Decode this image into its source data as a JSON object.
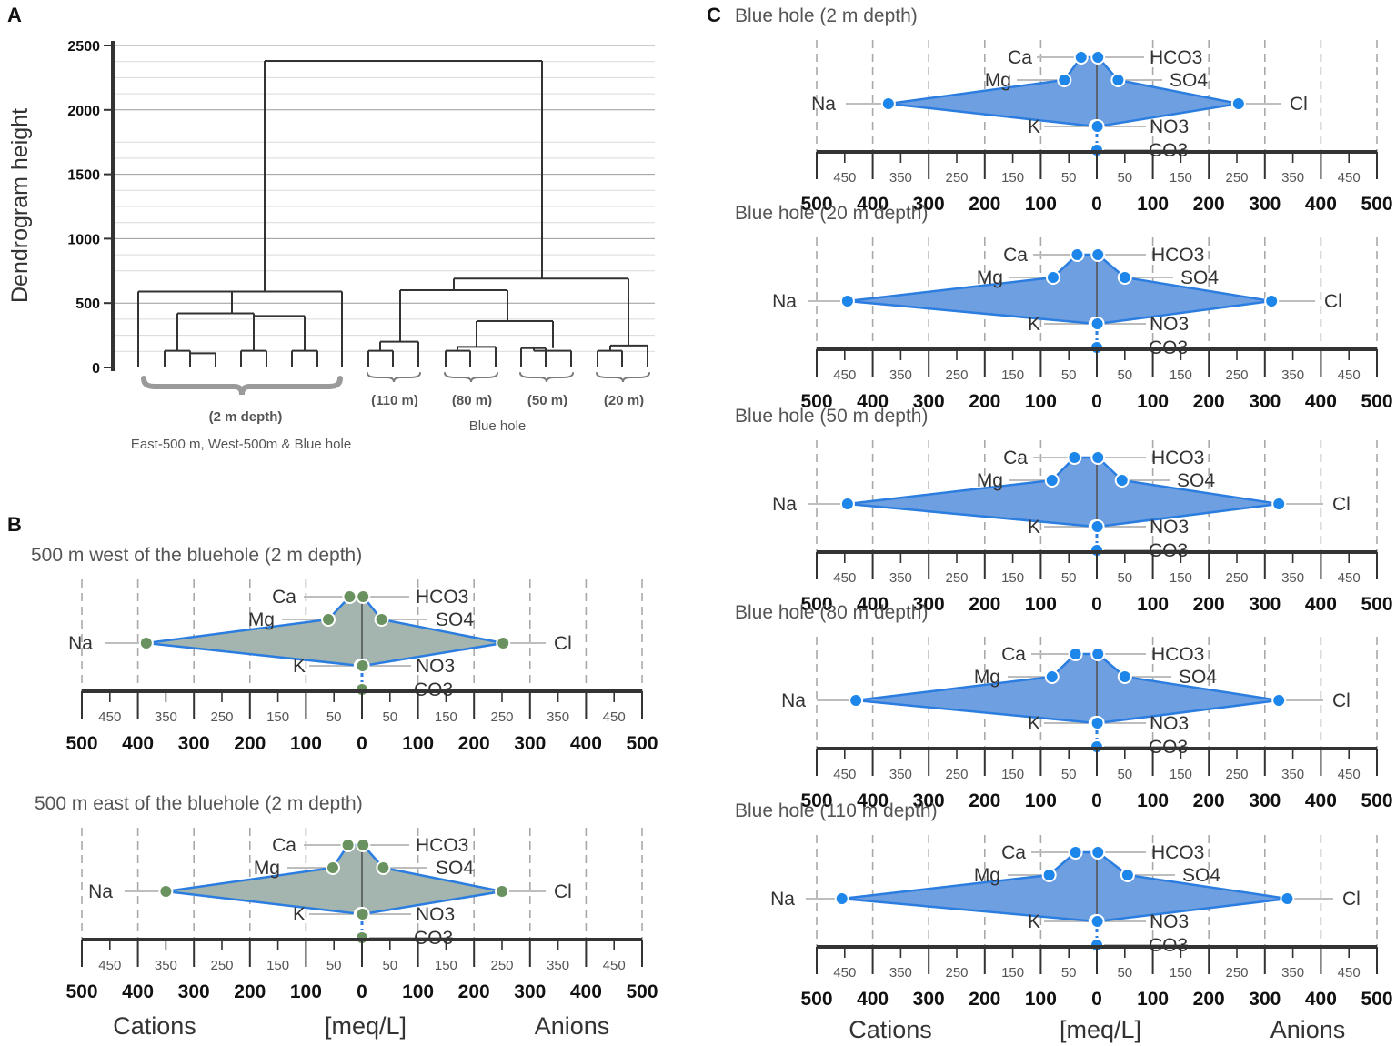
{
  "panel_labels": {
    "a": "A",
    "b": "B",
    "c": "C"
  },
  "chart_data": [
    {
      "type": "dendrogram",
      "panel": "A",
      "ylabel": "Dendrogram height",
      "ylim": [
        0,
        2500
      ],
      "yticks": [
        "0",
        "500",
        "1000",
        "1500",
        "2000",
        "2500"
      ],
      "root_merge_height": 2380,
      "cluster_merge_heights": [
        590,
        690
      ],
      "group_labels": [
        "(2 m depth)",
        "(110 m)",
        "(80 m)",
        "(50 m)",
        "(20 m)"
      ],
      "group_caption_left": "East-500 m, West-500m & Blue hole",
      "group_caption_right": "Blue hole"
    },
    {
      "type": "stiff",
      "panel": "B",
      "color_theme": "green",
      "axis": {
        "ticks_major": [
          "500",
          "400",
          "300",
          "200",
          "100",
          "0",
          "100",
          "200",
          "300",
          "400",
          "500"
        ],
        "ticks_minor": [
          "450",
          "350",
          "250",
          "150",
          "50",
          "50",
          "150",
          "250",
          "350",
          "450"
        ],
        "cations_label": "Cations",
        "units_label": "[meq/L]",
        "anions_label": "Anions"
      },
      "ion_labels": {
        "Na": "Na",
        "Ca": "Ca",
        "Mg": "Mg",
        "K": "K",
        "Cl": "Cl",
        "HCO3": "HCO3",
        "SO4": "SO4",
        "NO3": "NO3",
        "CO3": "CO3"
      },
      "samples": [
        {
          "title": "500 m west of the bluehole (2 m depth)",
          "cations": {
            "Na": 385,
            "Ca": 22,
            "Mg": 60,
            "K": 2
          },
          "anions": {
            "Cl": 252,
            "HCO3": 2,
            "SO4": 35,
            "NO3": 1,
            "CO3": 0
          }
        },
        {
          "title": "500 m east of the bluehole (2 m depth)",
          "cations": {
            "Na": 350,
            "Ca": 25,
            "Mg": 52,
            "K": 2
          },
          "anions": {
            "Cl": 250,
            "HCO3": 2,
            "SO4": 38,
            "NO3": 1,
            "CO3": 0
          }
        }
      ]
    },
    {
      "type": "stiff",
      "panel": "C",
      "color_theme": "blue",
      "axis": {
        "ticks_major": [
          "500",
          "400",
          "300",
          "200",
          "100",
          "0",
          "100",
          "200",
          "300",
          "400",
          "500"
        ],
        "ticks_minor": [
          "450",
          "350",
          "250",
          "150",
          "50",
          "50",
          "150",
          "250",
          "350",
          "450"
        ],
        "cations_label": "Cations",
        "units_label": "[meq/L]",
        "anions_label": "Anions"
      },
      "ion_labels": {
        "Na": "Na",
        "Ca": "Ca",
        "Mg": "Mg",
        "K": "K",
        "Cl": "Cl",
        "HCO3": "HCO3",
        "SO4": "SO4",
        "NO3": "NO3",
        "CO3": "CO3"
      },
      "samples": [
        {
          "title": "Blue hole (2 m depth)",
          "cations": {
            "Na": 372,
            "Ca": 28,
            "Mg": 58,
            "K": 2
          },
          "anions": {
            "Cl": 253,
            "HCO3": 2,
            "SO4": 38,
            "NO3": 1,
            "CO3": 0
          }
        },
        {
          "title": "Blue hole (20 m depth)",
          "cations": {
            "Na": 445,
            "Ca": 35,
            "Mg": 78,
            "K": 2
          },
          "anions": {
            "Cl": 312,
            "HCO3": 2,
            "SO4": 50,
            "NO3": 1,
            "CO3": 0
          }
        },
        {
          "title": "Blue hole (50 m depth)",
          "cations": {
            "Na": 445,
            "Ca": 40,
            "Mg": 80,
            "K": 2
          },
          "anions": {
            "Cl": 325,
            "HCO3": 2,
            "SO4": 45,
            "NO3": 1,
            "CO3": 0
          }
        },
        {
          "title": "Blue hole (80 m depth)",
          "cations": {
            "Na": 430,
            "Ca": 38,
            "Mg": 80,
            "K": 2
          },
          "anions": {
            "Cl": 325,
            "HCO3": 2,
            "SO4": 50,
            "NO3": 1,
            "CO3": 0
          }
        },
        {
          "title": "Blue hole (110 m depth)",
          "cations": {
            "Na": 455,
            "Ca": 38,
            "Mg": 85,
            "K": 2
          },
          "anions": {
            "Cl": 340,
            "HCO3": 2,
            "SO4": 55,
            "NO3": 1,
            "CO3": 0
          }
        }
      ]
    }
  ]
}
